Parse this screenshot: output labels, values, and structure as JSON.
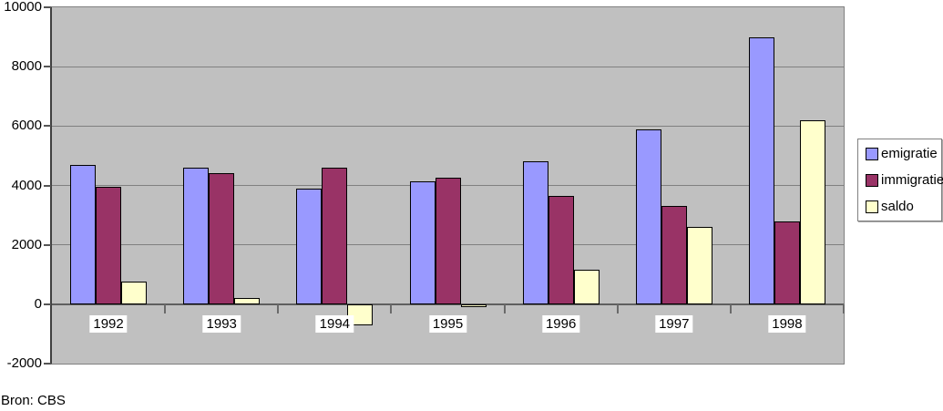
{
  "chart_data": {
    "type": "bar",
    "title": "",
    "categories": [
      "1992",
      "1993",
      "1994",
      "1995",
      "1996",
      "1997",
      "1998"
    ],
    "series": [
      {
        "name": "emigratie",
        "color": "#9999FF",
        "values": [
          4700,
          4600,
          3900,
          4150,
          4800,
          5900,
          9000
        ]
      },
      {
        "name": "immigratie",
        "color": "#993366",
        "values": [
          3950,
          4400,
          4600,
          4250,
          3650,
          3300,
          2800
        ]
      },
      {
        "name": "saldo",
        "color": "#FFFFCC",
        "values": [
          750,
          200,
          -700,
          -100,
          1150,
          2600,
          6200
        ]
      }
    ],
    "ylim": [
      -2000,
      10000
    ],
    "yticks": [
      -2000,
      0,
      2000,
      4000,
      6000,
      8000,
      10000
    ],
    "grid": true,
    "legend_position": "right",
    "legend_labels": [
      "emigratie",
      "immigratie",
      "saldo"
    ],
    "plot_bg_color": "#C0C0C0",
    "grid_color": "#808080",
    "axis_color": "#404040",
    "bar_border_color": "#000000",
    "source_note": "Bron: CBS"
  }
}
